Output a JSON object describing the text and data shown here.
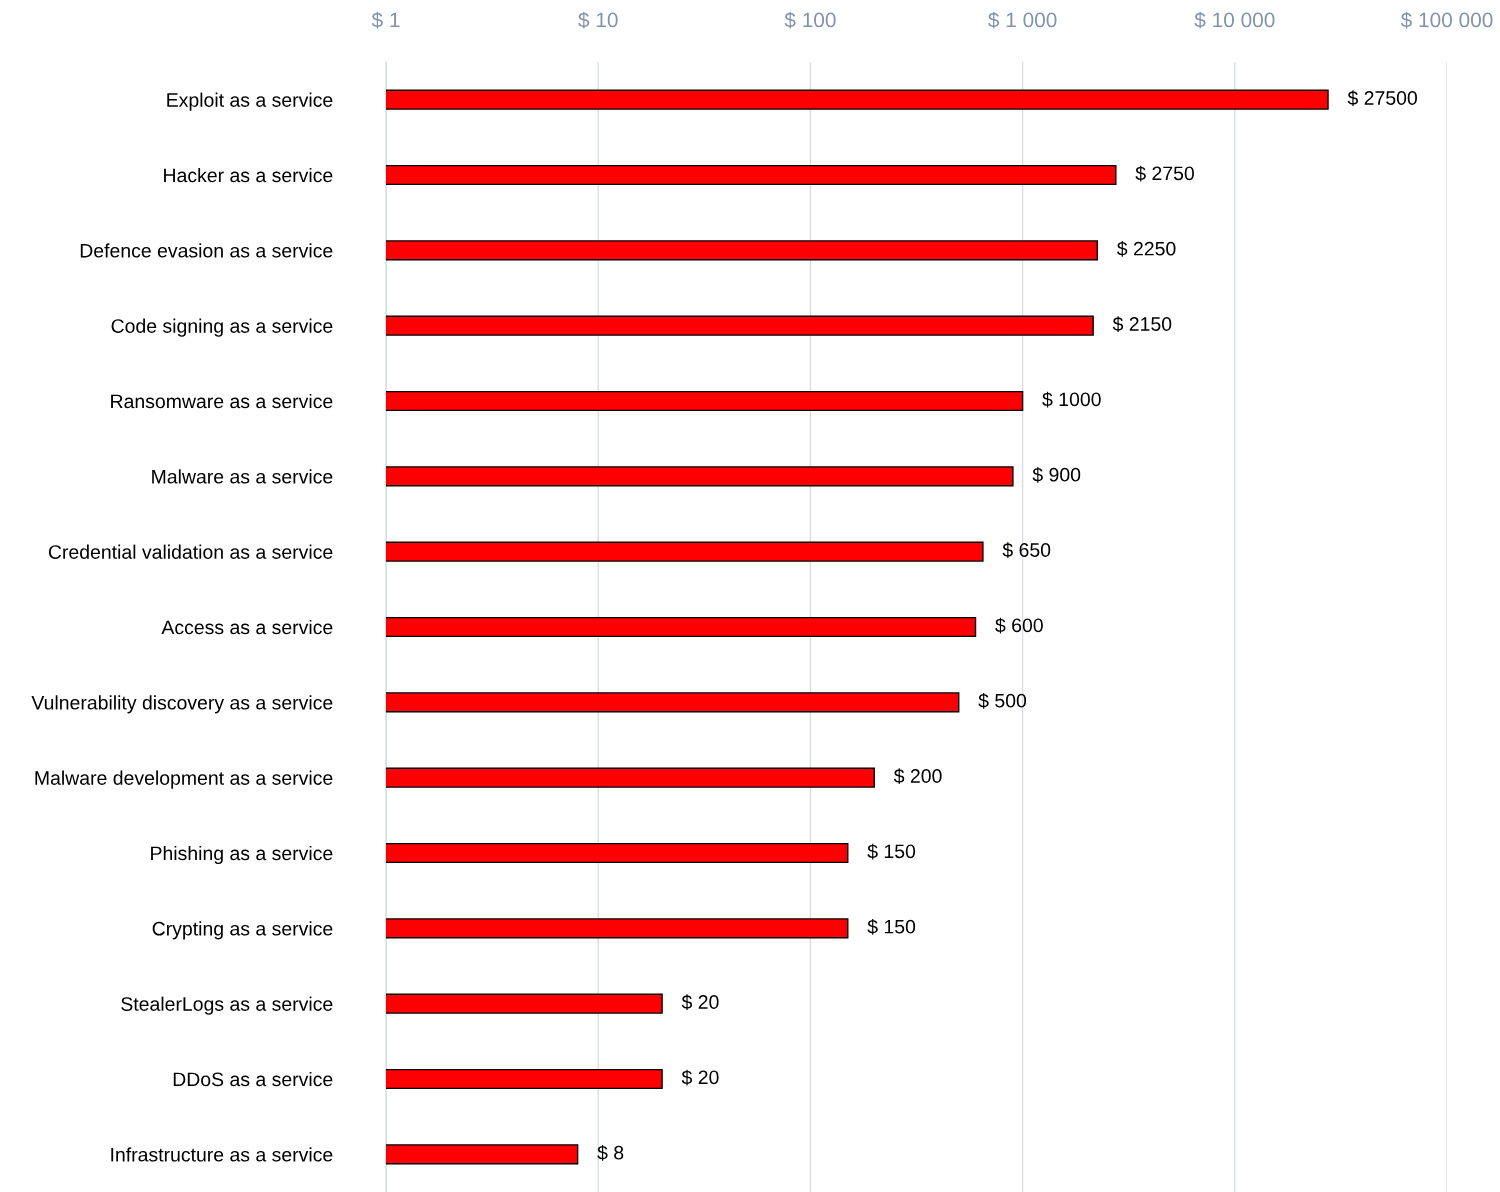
{
  "chart_data": {
    "type": "bar",
    "orientation": "horizontal",
    "log": "x",
    "categories": [
      "Exploit as a service",
      "Hacker as a service",
      "Defence evasion as a service",
      "Code signing as a service",
      "Ransomware as a service",
      "Malware as a service",
      "Credential validation as a service",
      "Access as a service",
      "Vulnerability discovery as a service",
      "Malware development as a service",
      "Phishing as a service",
      "Crypting as a service",
      "StealerLogs as a service",
      "DDoS as a service",
      "Infrastructure as a service"
    ],
    "values": [
      27500,
      2750,
      2250,
      2150,
      1000,
      900,
      650,
      600,
      500,
      200,
      150,
      150,
      20,
      20,
      8
    ],
    "value_labels": [
      "$ 27500",
      "$ 2750",
      "$ 2250",
      "$ 2150",
      "$ 1000",
      "$ 900",
      "$ 650",
      "$ 600",
      "$ 500",
      "$ 200",
      "$ 150",
      "$ 150",
      "$ 20",
      "$ 20",
      "$ 8"
    ],
    "color": "#ff0000",
    "xlim": [
      1,
      100000
    ],
    "xticks": [
      {
        "value": 1,
        "label": "$ 1"
      },
      {
        "value": 10,
        "label": "$ 10"
      },
      {
        "value": 100,
        "label": "$ 100"
      },
      {
        "value": 1000,
        "label": "$ 1 000"
      },
      {
        "value": 10000,
        "label": "$ 10 000"
      },
      {
        "value": 100000,
        "label": "$ 100 000"
      }
    ],
    "grid": "x",
    "legend": false
  }
}
